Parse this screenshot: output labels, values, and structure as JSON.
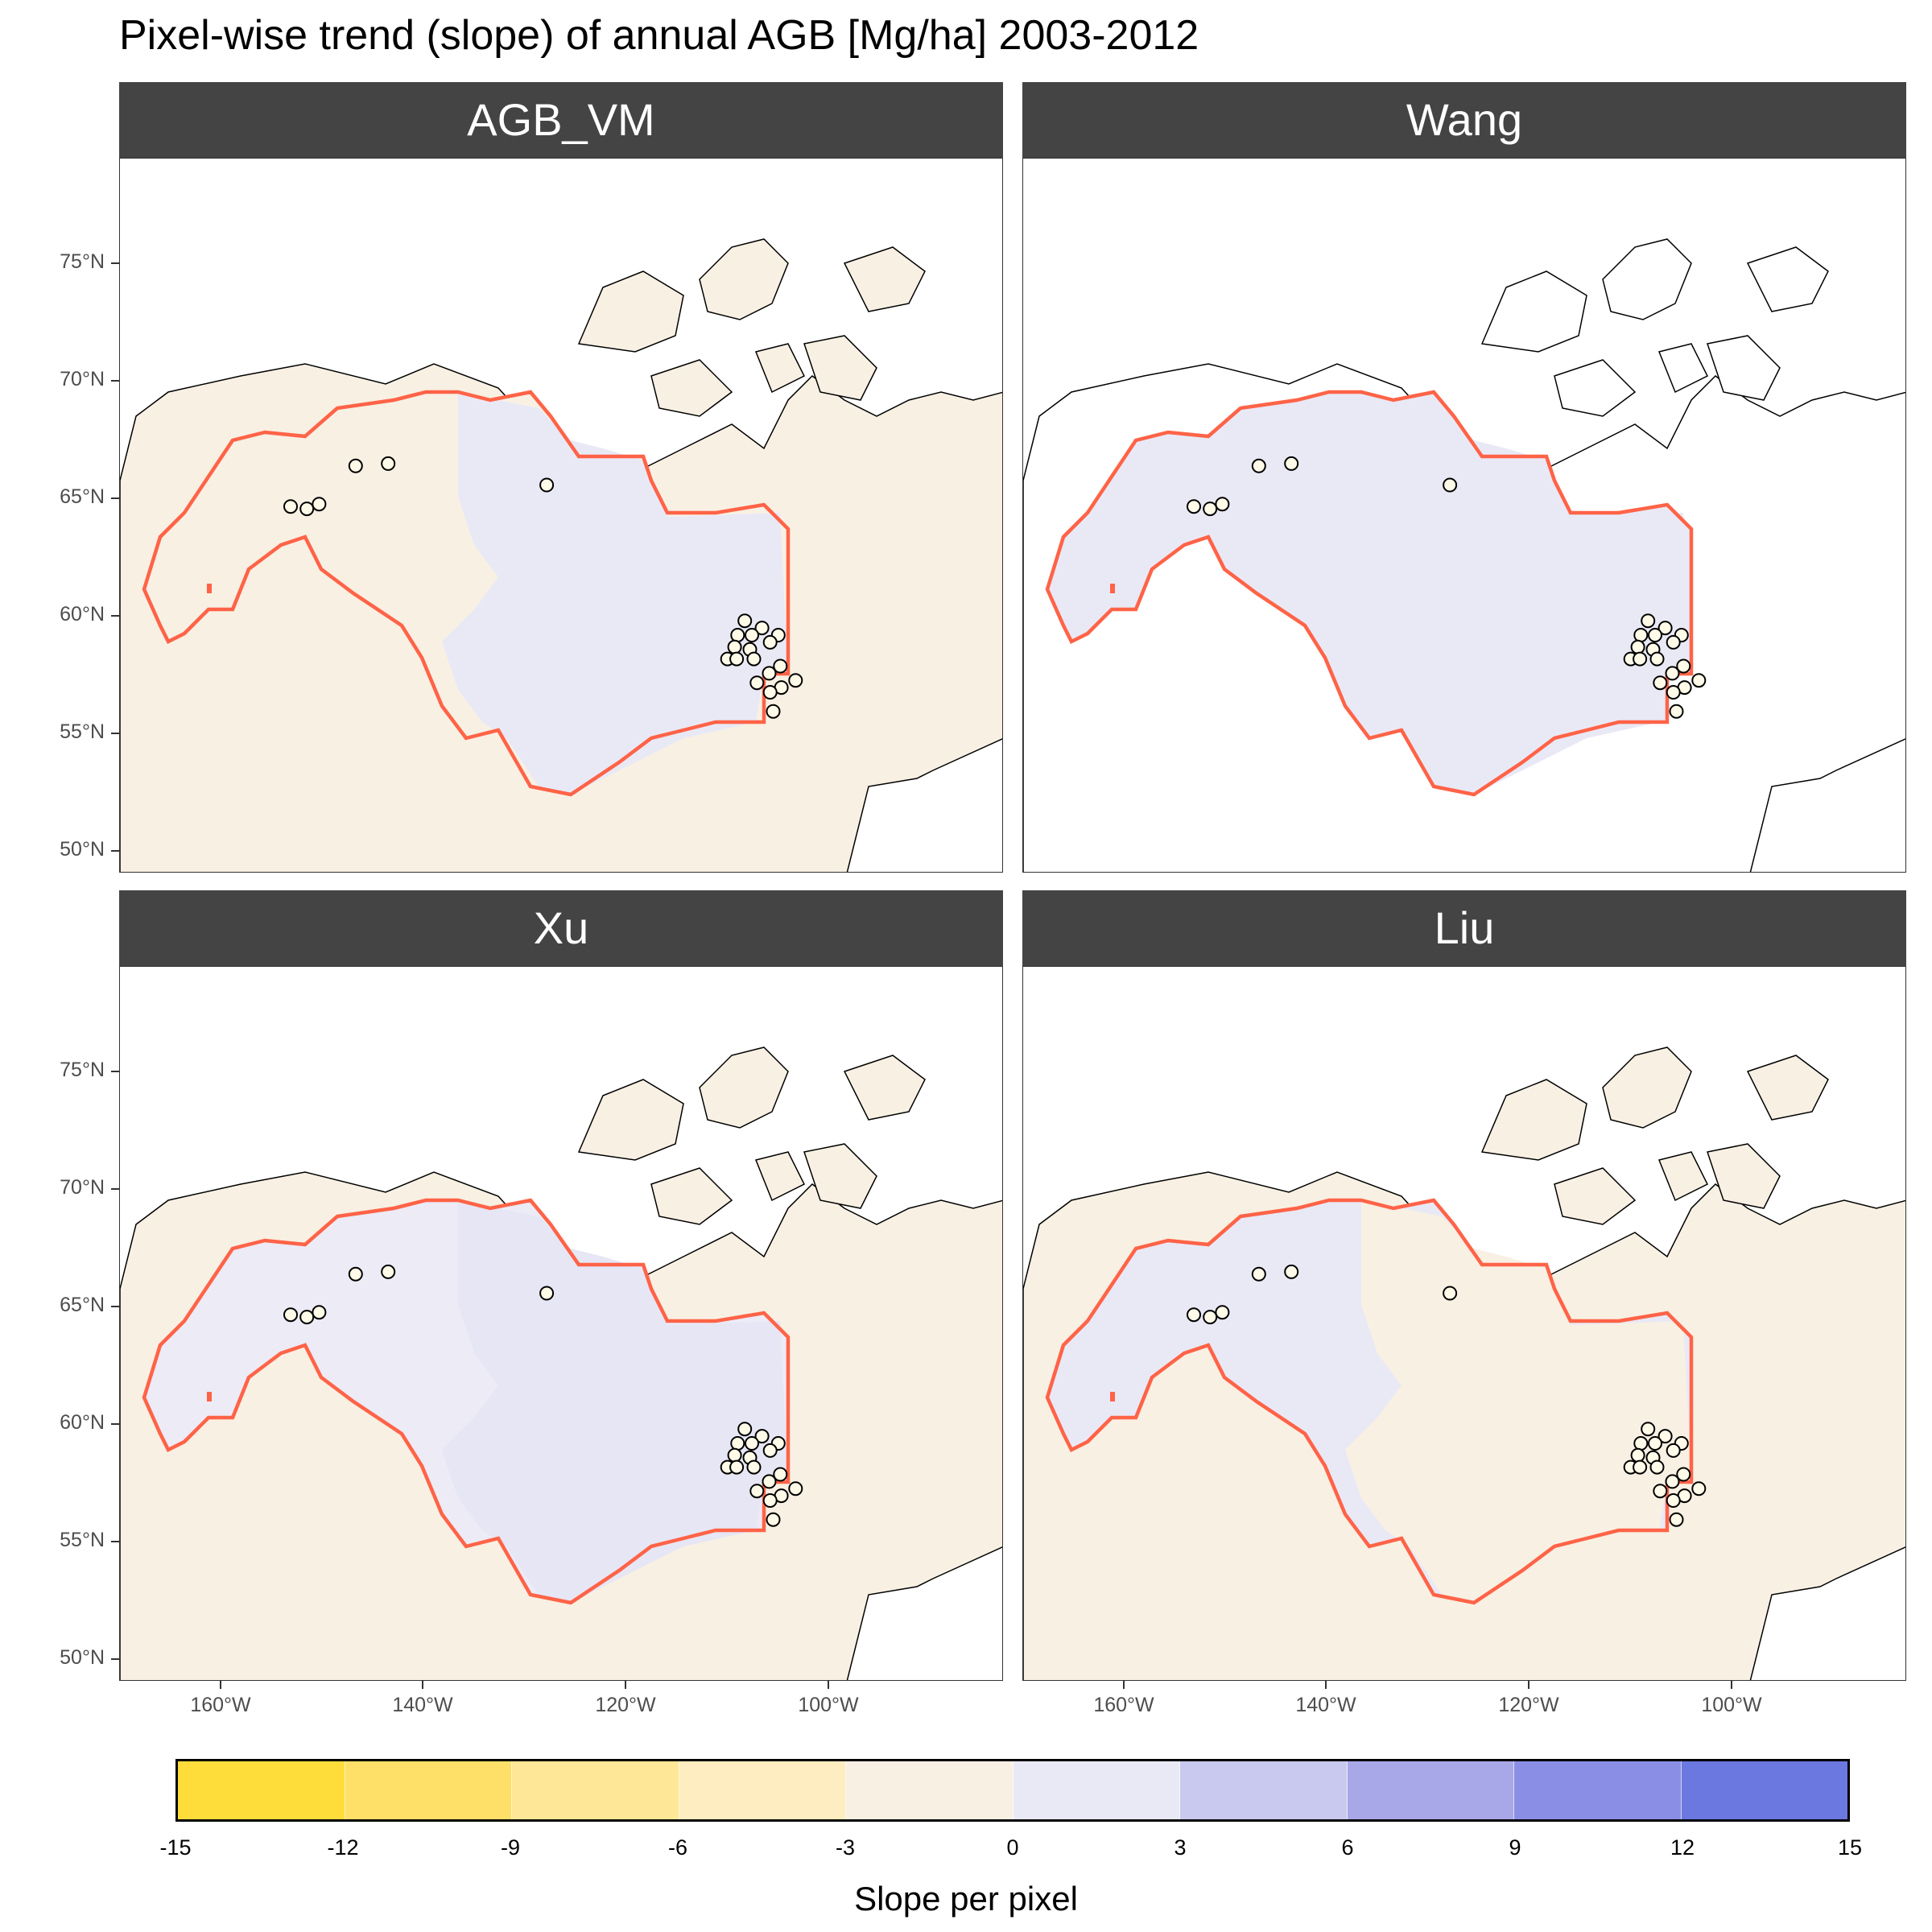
{
  "title": "Pixel-wise trend (slope) of annual AGB [Mg/ha] 2003-2012",
  "panels": [
    {
      "label": "AGB_VM",
      "inside_fill": "#f8f0e3",
      "outside_fill": "#f8f0e3",
      "region_fill": "#e9e9f6"
    },
    {
      "label": "Wang",
      "inside_fill": "#e9e9f6",
      "outside_fill": "#ffffff",
      "region_fill": "#e9e9f6"
    },
    {
      "label": "Xu",
      "inside_fill": "#ecebf6",
      "outside_fill": "#f8f0e3",
      "region_fill": "#e6e6f5"
    },
    {
      "label": "Liu",
      "inside_fill": "#e9e9f6",
      "outside_fill": "#f8f0e3",
      "region_fill": "#f8f0e3"
    }
  ],
  "axes": {
    "y_ticks": [
      "75°N",
      "70°N",
      "65°N",
      "60°N",
      "55°N",
      "50°N"
    ],
    "y_values": [
      75,
      70,
      65,
      60,
      55,
      50
    ],
    "x_ticks": [
      "160°W",
      "140°W",
      "120°W",
      "100°W"
    ],
    "x_values": [
      -160,
      -140,
      -120,
      -100
    ],
    "x_range": [
      -170,
      -83
    ],
    "y_range": [
      49,
      79
    ]
  },
  "study_area_color": "#ff6347",
  "sites": [
    {
      "lon": -153.2,
      "lat": 64.4
    },
    {
      "lon": -151.6,
      "lat": 64.3
    },
    {
      "lon": -150.4,
      "lat": 64.5
    },
    {
      "lon": -146.8,
      "lat": 66.1
    },
    {
      "lon": -143.6,
      "lat": 66.2
    },
    {
      "lon": -128.0,
      "lat": 65.3
    },
    {
      "lon": -108.5,
      "lat": 59.6
    },
    {
      "lon": -106.8,
      "lat": 59.3
    },
    {
      "lon": -105.2,
      "lat": 59.0
    },
    {
      "lon": -109.2,
      "lat": 59.0
    },
    {
      "lon": -107.8,
      "lat": 59.0
    },
    {
      "lon": -106.0,
      "lat": 58.7
    },
    {
      "lon": -109.5,
      "lat": 58.5
    },
    {
      "lon": -108.0,
      "lat": 58.4
    },
    {
      "lon": -110.2,
      "lat": 58.0
    },
    {
      "lon": -109.3,
      "lat": 58.0
    },
    {
      "lon": -107.6,
      "lat": 58.0
    },
    {
      "lon": -105.0,
      "lat": 57.7
    },
    {
      "lon": -106.1,
      "lat": 57.4
    },
    {
      "lon": -107.3,
      "lat": 57.0
    },
    {
      "lon": -103.5,
      "lat": 57.1
    },
    {
      "lon": -104.9,
      "lat": 56.8
    },
    {
      "lon": -106.0,
      "lat": 56.6
    },
    {
      "lon": -105.7,
      "lat": 55.8
    }
  ],
  "legend": {
    "title": "Slope per pixel",
    "ticks": [
      "-15",
      "-12",
      "-9",
      "-6",
      "-3",
      "0",
      "3",
      "6",
      "9",
      "12",
      "15"
    ],
    "colors": [
      "#fedd3b",
      "#fee069",
      "#fee898",
      "#feedc0",
      "#f8f0e3",
      "#e9e9f6",
      "#c9c9ef",
      "#a8a8e8",
      "#8a8fe5",
      "#6a78e0"
    ]
  }
}
